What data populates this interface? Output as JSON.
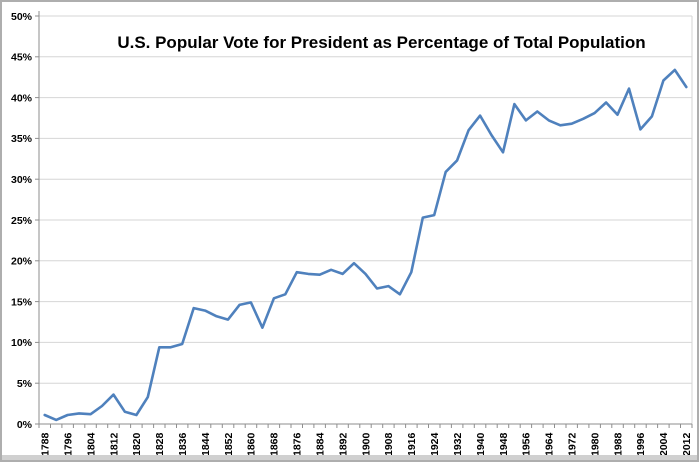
{
  "colors": {
    "line": "#4F81BD",
    "gridline": "#D6D6D6",
    "axis": "#8E8E8E",
    "text": "#000000",
    "frame": "#AEAEAE",
    "bottom_strip": "#D0D0D0",
    "background": "#FFFFFF"
  },
  "chart_data": {
    "type": "line",
    "title": "U.S. Popular Vote for President as Percentage of Total Population",
    "xlabel": "",
    "ylabel": "",
    "xrange": [
      1788,
      2012
    ],
    "ylim": [
      0,
      50
    ],
    "grid": "horizontal",
    "legend": "none",
    "x": [
      1788,
      1792,
      1796,
      1800,
      1804,
      1808,
      1812,
      1816,
      1820,
      1824,
      1828,
      1832,
      1836,
      1840,
      1844,
      1848,
      1852,
      1856,
      1860,
      1864,
      1868,
      1872,
      1876,
      1880,
      1884,
      1888,
      1892,
      1896,
      1900,
      1904,
      1908,
      1912,
      1916,
      1920,
      1924,
      1928,
      1932,
      1936,
      1940,
      1944,
      1948,
      1952,
      1956,
      1960,
      1964,
      1968,
      1972,
      1976,
      1980,
      1984,
      1988,
      1992,
      1996,
      2000,
      2004,
      2008,
      2012
    ],
    "values": [
      1.1,
      0.5,
      1.1,
      1.3,
      1.2,
      2.2,
      3.6,
      1.5,
      1.1,
      3.3,
      9.4,
      9.4,
      9.8,
      14.2,
      13.9,
      13.2,
      12.8,
      14.6,
      14.9,
      11.8,
      15.4,
      15.9,
      18.6,
      18.4,
      18.3,
      18.9,
      18.4,
      19.7,
      18.4,
      16.6,
      16.9,
      15.9,
      18.6,
      25.3,
      25.6,
      30.9,
      32.3,
      36.0,
      37.8,
      35.4,
      33.3,
      39.2,
      37.2,
      38.3,
      37.2,
      36.6,
      36.8,
      37.4,
      38.1,
      39.4,
      37.9,
      41.1,
      36.1,
      37.7,
      42.1,
      43.4,
      41.3
    ],
    "x_tick_labels": [
      "1788",
      "1796",
      "1804",
      "1812",
      "1820",
      "1828",
      "1836",
      "1844",
      "1852",
      "1860",
      "1868",
      "1876",
      "1884",
      "1892",
      "1900",
      "1908",
      "1916",
      "1924",
      "1932",
      "1940",
      "1948",
      "1956",
      "1964",
      "1972",
      "1980",
      "1988",
      "1996",
      "2004",
      "2012"
    ],
    "y_tick_labels": [
      "0%",
      "5%",
      "10%",
      "15%",
      "20%",
      "25%",
      "30%",
      "35%",
      "40%",
      "45%",
      "50%"
    ]
  }
}
